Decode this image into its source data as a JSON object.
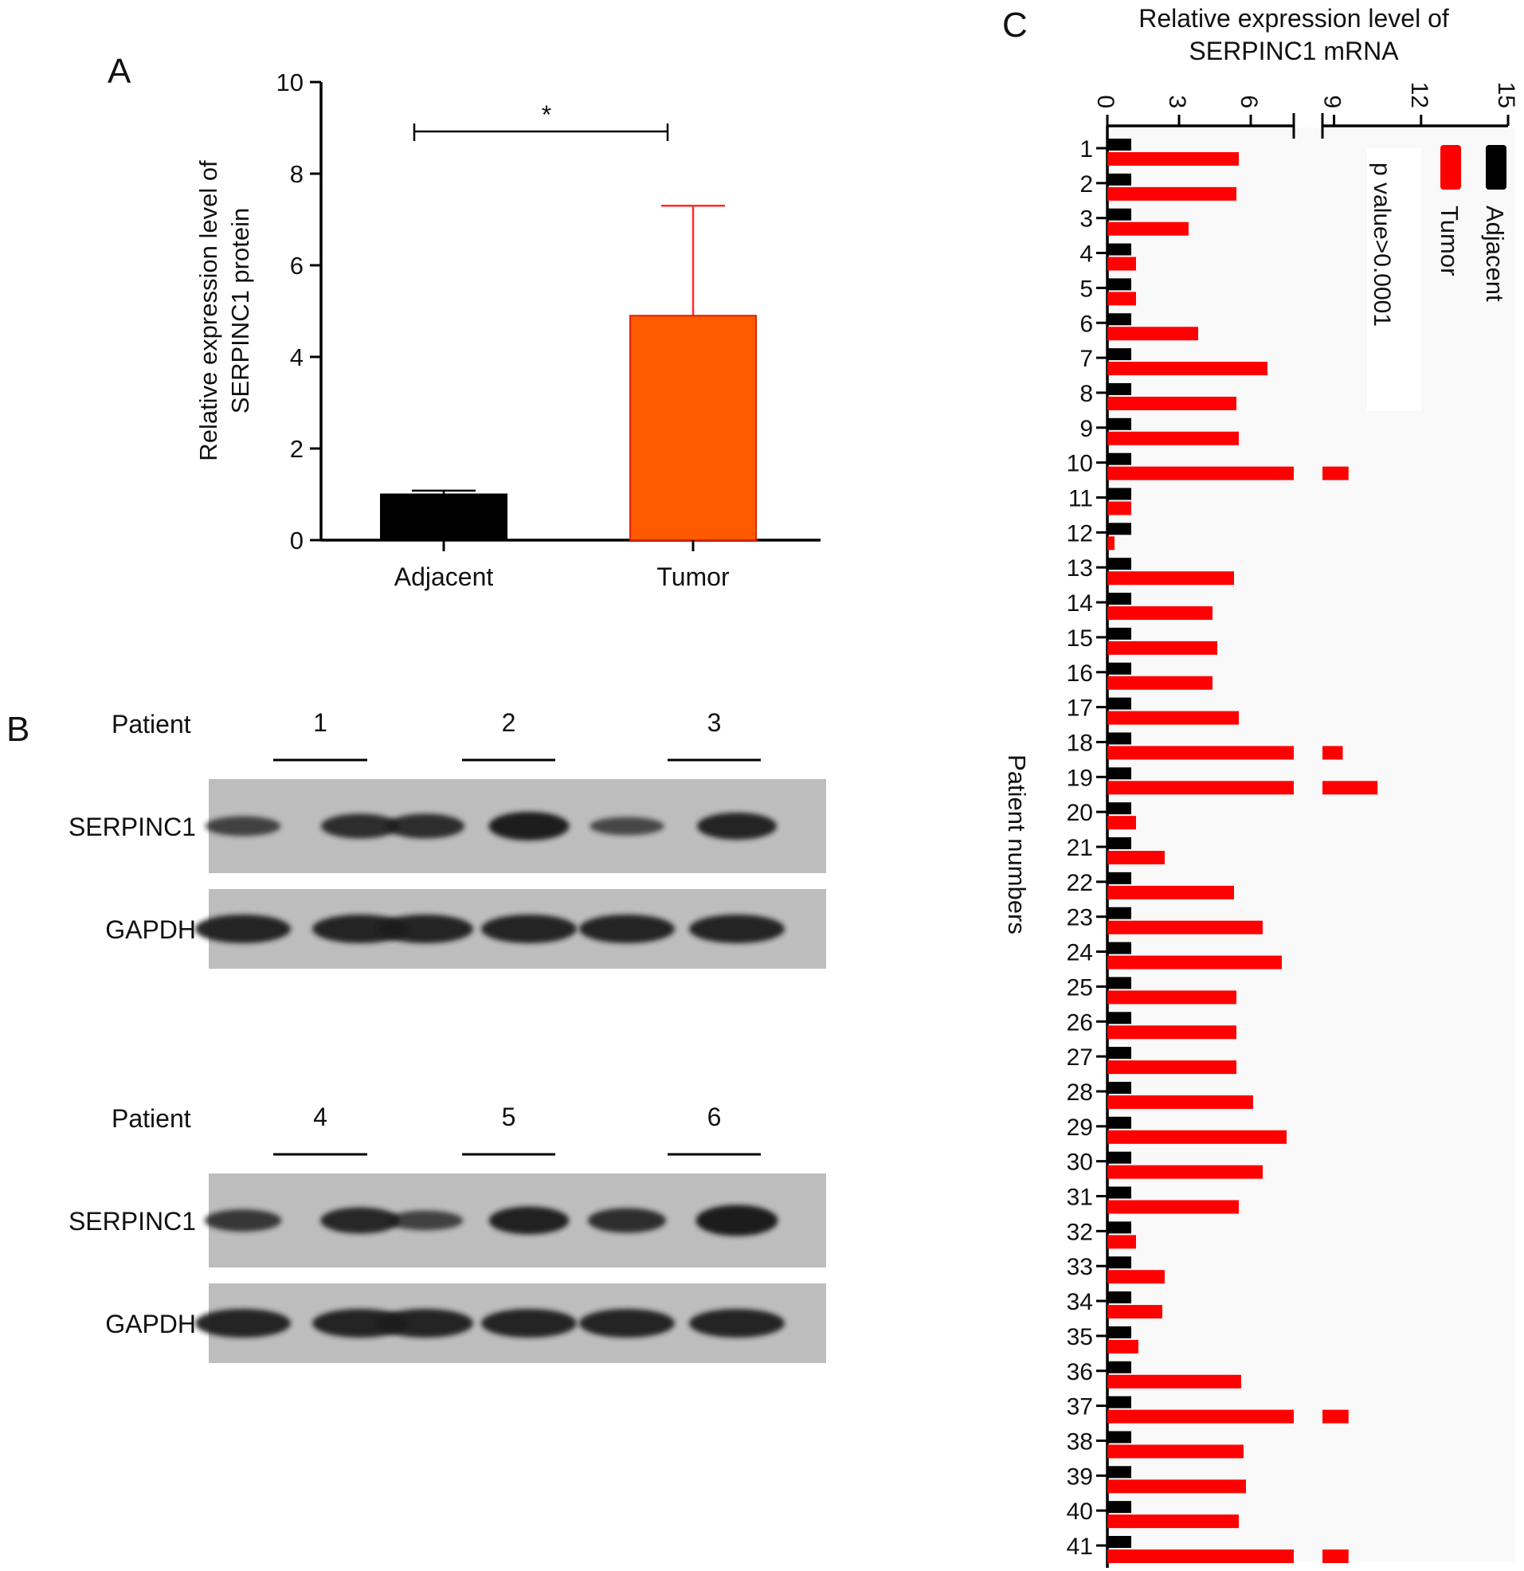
{
  "panels": {
    "a": {
      "letter": "A"
    },
    "b": {
      "letter": "B"
    },
    "c": {
      "letter": "C"
    }
  },
  "blot": {
    "patient_label": "Patient",
    "rows": [
      {
        "patients": [
          "1",
          "2",
          "3"
        ],
        "labels": [
          "SERPINC1",
          "GAPDH"
        ]
      },
      {
        "patients": [
          "4",
          "5",
          "6"
        ],
        "labels": [
          "SERPINC1",
          "GAPDH"
        ]
      }
    ],
    "colors": {
      "membrane": "#bdbdbd",
      "band": "#1a1a1a"
    }
  },
  "chart_data": [
    {
      "panel": "A",
      "type": "bar",
      "categories": [
        "Adjacent",
        "Tumor"
      ],
      "values": [
        1.0,
        4.9
      ],
      "errors": [
        0.08,
        2.4
      ],
      "colors": [
        "#000000",
        "#ff5a00"
      ],
      "error_colors": [
        "#000000",
        "#ff2a2a"
      ],
      "ylabel": "Relative expression level of SERPINC1 protein",
      "ylabel_lines": [
        "Relative expression level of",
        "SERPINC1 protein"
      ],
      "ylim": [
        0,
        10
      ],
      "yticks": [
        "0",
        "2",
        "4",
        "6",
        "8",
        "10"
      ],
      "significance": "*",
      "grid": false
    },
    {
      "panel": "C",
      "type": "bar",
      "orientation": "horizontal",
      "title": "Relative expression level of SERPINC1 mRNA",
      "title_lines": [
        "Relative expression level of",
        "SERPINC1 mRNA"
      ],
      "ylabel": "Patient numbers",
      "categories": [
        "1",
        "2",
        "3",
        "4",
        "5",
        "6",
        "7",
        "8",
        "9",
        "10",
        "11",
        "12",
        "13",
        "14",
        "15",
        "16",
        "17",
        "18",
        "19",
        "20",
        "21",
        "22",
        "23",
        "24",
        "25",
        "26",
        "27",
        "28",
        "29",
        "30",
        "31",
        "32",
        "33",
        "34",
        "35",
        "36",
        "37",
        "38",
        "39",
        "40",
        "41"
      ],
      "xticks": [
        "0",
        "3",
        "6",
        "9",
        "12",
        "15"
      ],
      "xlim": [
        0,
        15
      ],
      "axis_break": [
        7.8,
        8.6
      ],
      "series": [
        {
          "name": "Adjacent",
          "color": "#000000",
          "values": [
            1,
            1,
            1,
            1,
            1,
            1,
            1,
            1,
            1,
            1,
            1,
            1,
            1,
            1,
            1,
            1,
            1,
            1,
            1,
            1,
            1,
            1,
            1,
            1,
            1,
            1,
            1,
            1,
            1,
            1,
            1,
            1,
            1,
            1,
            1,
            1,
            1,
            1,
            1,
            1,
            1
          ]
        },
        {
          "name": "Tumor",
          "color": "#ff0000",
          "values": [
            5.5,
            5.4,
            3.4,
            1.2,
            1.2,
            3.8,
            6.7,
            5.4,
            5.5,
            9.5,
            1.0,
            0.3,
            5.3,
            4.4,
            4.6,
            4.4,
            5.5,
            9.3,
            10.5,
            1.2,
            2.4,
            5.3,
            6.5,
            7.3,
            5.4,
            5.4,
            5.4,
            6.1,
            7.5,
            6.5,
            5.5,
            1.2,
            2.4,
            2.3,
            1.3,
            5.6,
            9.5,
            5.7,
            5.8,
            5.5,
            9.5
          ]
        }
      ],
      "annotation": "p value>0.0001",
      "legend_position": "top-right",
      "grid": false
    }
  ]
}
